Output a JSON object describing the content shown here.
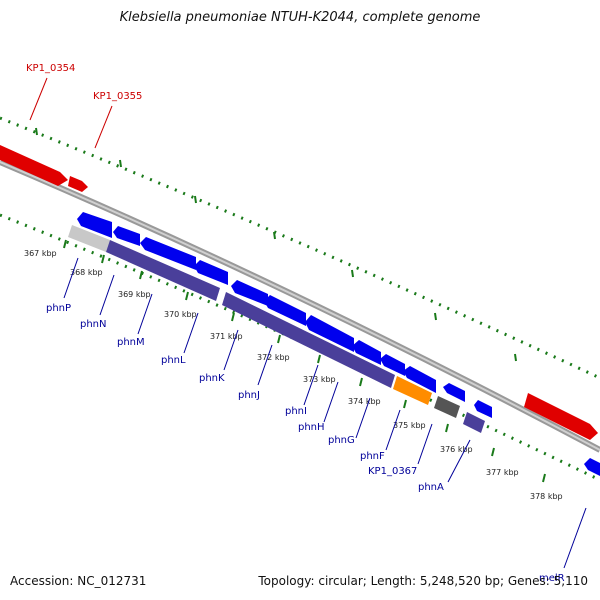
{
  "title": "Klebsiella pneumoniae NTUH-K2044, complete genome",
  "footer": {
    "accession": "Accession: NC_012731",
    "info": "Topology: circular; Length: 5,248,520 bp; Genes: 5,110"
  },
  "scale_labels": [
    "367 kbp",
    "368 kbp",
    "369 kbp",
    "370 kbp",
    "371 kbp",
    "372 kbp",
    "373 kbp",
    "374 kbp",
    "375 kbp",
    "376 kbp",
    "377 kbp",
    "378 kbp"
  ],
  "genes_outer": [
    "KP1_0354",
    "KP1_0355"
  ],
  "genes_inner": [
    "phnP",
    "phnN",
    "phnM",
    "phnL",
    "phnK",
    "phnJ",
    "phnI",
    "phnH",
    "phnG",
    "phnF",
    "KP1_0367",
    "phnA",
    "melR"
  ],
  "colors": {
    "forward_cds": "#e00000",
    "reverse_cds": "#0000ee",
    "orf_bar": "#4a3f9a",
    "highlight": "#ff8c00",
    "backbone": "#888888",
    "ticks": "#1a7a1a",
    "outer_label": "#cc0000",
    "inner_label": "#000099"
  }
}
